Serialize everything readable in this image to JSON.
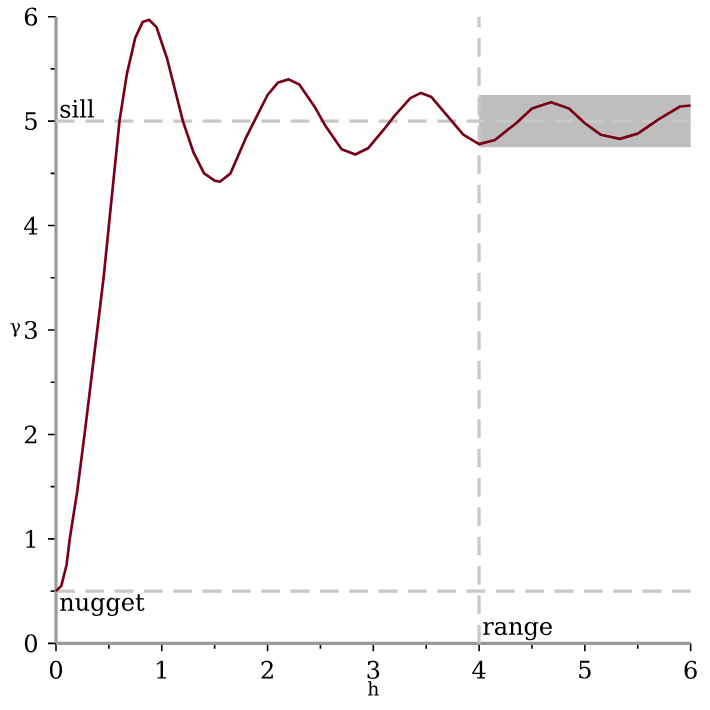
{
  "chart_data": {
    "type": "line",
    "xlabel": "h",
    "ylabel": "γ",
    "x": [
      0,
      0.05,
      0.1,
      0.13,
      0.2,
      0.27,
      0.33,
      0.39,
      0.45,
      0.5,
      0.55,
      0.6,
      0.67,
      0.75,
      0.82,
      0.88,
      0.95,
      1.05,
      1.15,
      1.2,
      1.3,
      1.4,
      1.5,
      1.55,
      1.65,
      1.8,
      1.9,
      2.0,
      2.1,
      2.2,
      2.3,
      2.45,
      2.55,
      2.7,
      2.83,
      2.95,
      3.1,
      3.2,
      3.35,
      3.45,
      3.55,
      3.7,
      3.85,
      4.0,
      4.15,
      4.35,
      4.5,
      4.68,
      4.85,
      5.0,
      5.15,
      5.33,
      5.5,
      5.7,
      5.9,
      6.0
    ],
    "series": [
      {
        "color": "#7a0019",
        "values": [
          0.5,
          0.55,
          0.75,
          1.0,
          1.45,
          2.0,
          2.5,
          3.0,
          3.5,
          4.0,
          4.5,
          5.0,
          5.45,
          5.8,
          5.95,
          5.97,
          5.9,
          5.6,
          5.2,
          5.0,
          4.7,
          4.5,
          4.43,
          4.42,
          4.5,
          4.85,
          5.05,
          5.25,
          5.37,
          5.4,
          5.35,
          5.13,
          4.95,
          4.73,
          4.68,
          4.74,
          4.92,
          5.05,
          5.22,
          5.27,
          5.23,
          5.05,
          4.87,
          4.78,
          4.82,
          4.98,
          5.12,
          5.18,
          5.12,
          4.98,
          4.87,
          4.83,
          4.88,
          5.02,
          5.14,
          5.15
        ]
      }
    ],
    "xlim": [
      0,
      6
    ],
    "ylim": [
      0,
      6
    ],
    "xticks": [
      0,
      1,
      2,
      3,
      4,
      5,
      6
    ],
    "yticks": [
      0,
      1,
      2,
      3,
      4,
      5,
      6
    ],
    "ref_lines": [
      {
        "axis": "y",
        "value": 5,
        "label": "sill",
        "color": "#c8c8c8",
        "line_style": "dashed"
      },
      {
        "axis": "y",
        "value": 0.5,
        "label": "nugget",
        "color": "#c8c8c8",
        "line_style": "dashed"
      },
      {
        "axis": "x",
        "value": 4,
        "label": "range",
        "color": "#c8c8c8",
        "line_style": "dashed"
      }
    ],
    "bands": [
      {
        "axis": "y",
        "from": 4.75,
        "to": 5.25,
        "color": "#bebebe"
      }
    ],
    "line_style": "solid",
    "marker": "none"
  }
}
